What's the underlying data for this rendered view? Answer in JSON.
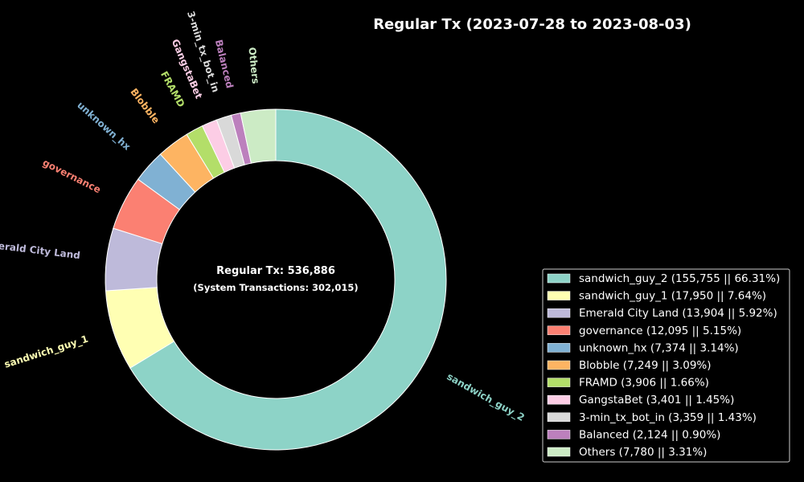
{
  "chart_data": {
    "type": "pie",
    "title": "Regular Tx (2023-07-28 to 2023-08-03)",
    "center_text": "Regular Tx: 536,886",
    "center_subtext": "(System Transactions: 302,015)",
    "legend_position": "lower-right",
    "slices": [
      {
        "label": "sandwich_guy_2",
        "value": 155755,
        "percent": 66.31,
        "color": "#8dd3c7",
        "legend": "sandwich_guy_2 (155,755 || 66.31%)"
      },
      {
        "label": "sandwich_guy_1",
        "value": 17950,
        "percent": 7.64,
        "color": "#ffffb3",
        "legend": "sandwich_guy_1 (17,950 || 7.64%)"
      },
      {
        "label": "Emerald City Land",
        "value": 13904,
        "percent": 5.92,
        "color": "#bebada",
        "legend": "Emerald City Land (13,904 || 5.92%)"
      },
      {
        "label": "governance",
        "value": 12095,
        "percent": 5.15,
        "color": "#fb8072",
        "legend": "governance (12,095 || 5.15%)"
      },
      {
        "label": "unknown_hx",
        "value": 7374,
        "percent": 3.14,
        "color": "#80b1d3",
        "legend": "unknown_hx (7,374 || 3.14%)"
      },
      {
        "label": "Blobble",
        "value": 7249,
        "percent": 3.09,
        "color": "#fdb462",
        "legend": "Blobble (7,249 || 3.09%)"
      },
      {
        "label": "FRAMD",
        "value": 3906,
        "percent": 1.66,
        "color": "#b3de69",
        "legend": "FRAMD (3,906 || 1.66%)"
      },
      {
        "label": "GangstaBet",
        "value": 3401,
        "percent": 1.45,
        "color": "#fccde5",
        "legend": "GangstaBet (3,401 || 1.45%)"
      },
      {
        "label": "3-min_tx_bot_in",
        "value": 3359,
        "percent": 1.43,
        "color": "#d9d9d9",
        "legend": "3-min_tx_bot_in (3,359 || 1.43%)"
      },
      {
        "label": "Balanced",
        "value": 2124,
        "percent": 0.9,
        "color": "#bc80bd",
        "legend": "Balanced (2,124 || 0.90%)"
      },
      {
        "label": "Others",
        "value": 7780,
        "percent": 3.31,
        "color": "#ccebc5",
        "legend": "Others (7,780 || 3.31%)"
      }
    ]
  }
}
